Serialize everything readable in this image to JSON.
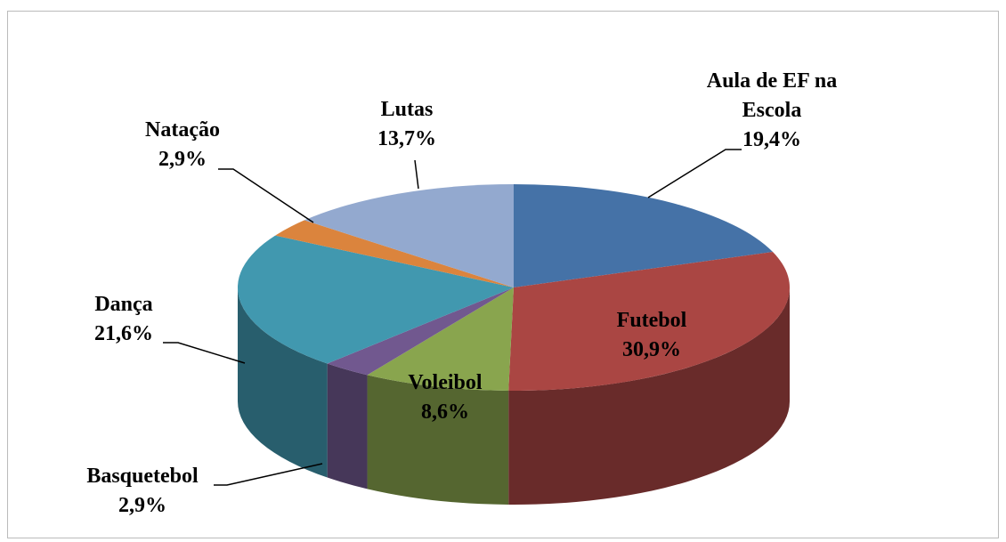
{
  "chart_data": {
    "type": "pie3d",
    "categories": [
      "Aula de EF na Escola",
      "Futebol",
      "Voleibol",
      "Basquetebol",
      "Dança",
      "Natação",
      "Lutas"
    ],
    "values": [
      19.4,
      30.9,
      8.6,
      2.9,
      21.6,
      2.9,
      13.7
    ],
    "value_labels": [
      "19,4%",
      "30,9%",
      "8,6%",
      "2,9%",
      "21,6%",
      "2,9%",
      "13,7%"
    ],
    "colors": [
      "#4572a7",
      "#aa4643",
      "#89a54e",
      "#71588f",
      "#4198af",
      "#db843d",
      "#93a9cf"
    ]
  }
}
